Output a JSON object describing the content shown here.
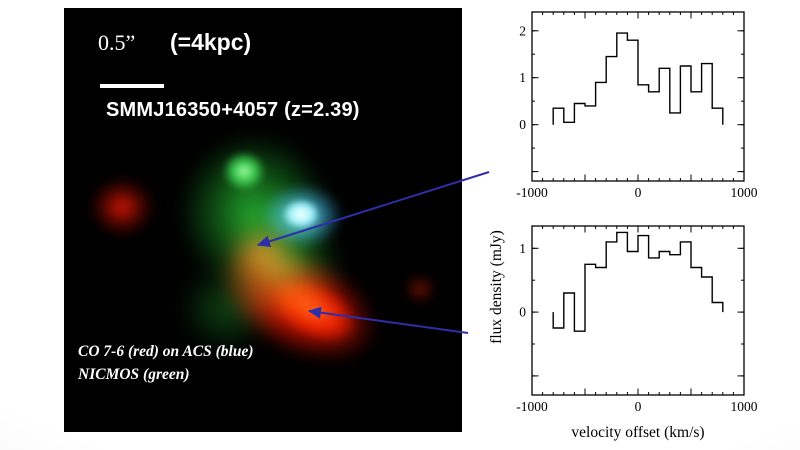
{
  "figure": {
    "scale_label": "0.5”",
    "scale_equivalent": "(=4kpc)",
    "title": "SMMJ16350+4057 (z=2.39)",
    "caption_line1": "CO 7-6 (red) on ACS (blue)",
    "caption_line2": "NICMOS (green)"
  },
  "axes": {
    "x_label": "velocity offset (km/s)",
    "y_label": "flux density (mJy)"
  },
  "colors": {
    "arrow": "#2e2ea8",
    "co_red": "#e81500",
    "nicmos_green": "#1cb42c",
    "acs_cyan": "#8ceeff",
    "plot_line": "#000000",
    "panel_background": "#000000",
    "text_on_panel": "#ffffff"
  },
  "chart_data": [
    {
      "type": "line",
      "style": "step-histogram",
      "title": "",
      "xlabel": "velocity offset (km/s)",
      "ylabel": "flux density (mJy)",
      "xlim": [
        -1000,
        1000
      ],
      "ylim": [
        -1.2,
        2.4
      ],
      "x_major": 500,
      "x_minor": 100,
      "y_major": 1,
      "y_minor": 0.5,
      "x_ticks_labeled": [
        -1000,
        0,
        1000
      ],
      "y_ticks_labeled": [
        0,
        1,
        2
      ],
      "bin_edges": [
        -800,
        -700,
        -600,
        -500,
        -400,
        -300,
        -200,
        -100,
        0,
        100,
        200,
        300,
        400,
        500,
        600,
        700,
        800
      ],
      "values": [
        0.35,
        0.05,
        0.45,
        0.4,
        0.9,
        1.45,
        1.95,
        1.8,
        0.85,
        0.7,
        1.2,
        0.25,
        1.25,
        0.7,
        1.3,
        0.35
      ]
    },
    {
      "type": "line",
      "style": "step-histogram",
      "title": "",
      "xlabel": "velocity offset (km/s)",
      "ylabel": "flux density (mJy)",
      "xlim": [
        -1000,
        1000
      ],
      "ylim": [
        -1.3,
        1.35
      ],
      "x_major": 500,
      "x_minor": 100,
      "y_major": 1,
      "y_minor": 0.5,
      "x_ticks_labeled": [
        -1000,
        0,
        1000
      ],
      "y_ticks_labeled": [
        0,
        1
      ],
      "bin_edges": [
        -800,
        -700,
        -600,
        -500,
        -400,
        -300,
        -200,
        -100,
        0,
        100,
        200,
        300,
        400,
        500,
        600,
        700,
        800
      ],
      "values": [
        -0.25,
        0.3,
        -0.3,
        0.75,
        0.7,
        1.1,
        1.25,
        0.95,
        1.2,
        0.85,
        0.95,
        0.9,
        1.1,
        0.7,
        0.55,
        0.15
      ]
    }
  ]
}
